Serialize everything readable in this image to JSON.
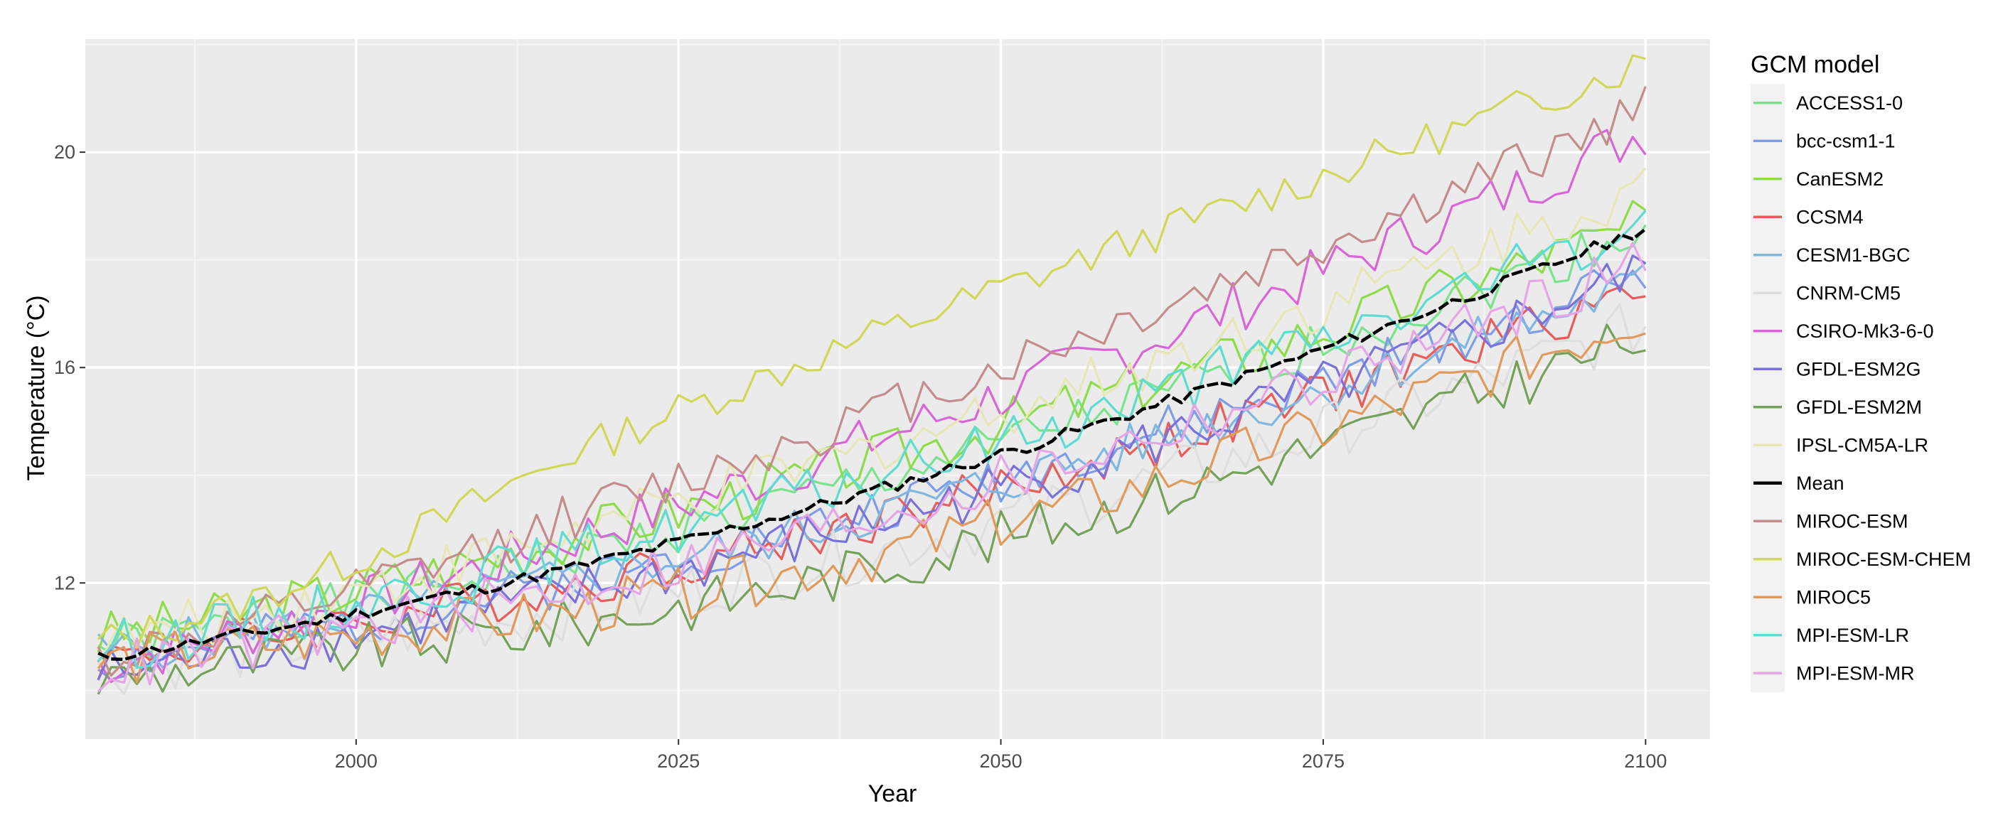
{
  "chart_data": {
    "type": "line",
    "title": "",
    "xlabel": "Year",
    "ylabel": "Temperature (°C)",
    "xlim": [
      1979,
      2105
    ],
    "ylim": [
      9.1,
      22.1
    ],
    "x_ticks": [
      2000,
      2025,
      2050,
      2075,
      2100
    ],
    "y_ticks": [
      12,
      16,
      20
    ],
    "x_tick_labels": [
      "2000",
      "2025",
      "2050",
      "2075",
      "2100"
    ],
    "y_tick_labels": [
      "12",
      "16",
      "20"
    ],
    "grid": true,
    "legend": {
      "title": "GCM model",
      "placement": "right",
      "entries": [
        "ACCESS1-0",
        "bcc-csm1-1",
        "CanESM2",
        "CCSM4",
        "CESM1-BGC",
        "CNRM-CM5",
        "CSIRO-Mk3-6-0",
        "GFDL-ESM2G",
        "GFDL-ESM2M",
        "IPSL-CM5A-LR",
        "Mean",
        "MIROC-ESM",
        "MIROC-ESM-CHEM",
        "MIROC5",
        "MPI-ESM-LR",
        "MPI-ESM-MR"
      ]
    },
    "series": [
      {
        "name": "ACCESS1-0",
        "color": "#7be38f",
        "start": 10.8,
        "end": 18.6,
        "offset": 0.1,
        "seed": 1,
        "noise": 0.45
      },
      {
        "name": "bcc-csm1-1",
        "color": "#7f9de6",
        "start": 10.5,
        "end": 17.8,
        "offset": 0.0,
        "seed": 2,
        "noise": 0.45
      },
      {
        "name": "CanESM2",
        "color": "#8fdc4a",
        "start": 11.0,
        "end": 18.7,
        "offset": 0.3,
        "seed": 3,
        "noise": 0.5
      },
      {
        "name": "CCSM4",
        "color": "#e85c5c",
        "start": 10.6,
        "end": 17.5,
        "offset": -0.1,
        "seed": 4,
        "noise": 0.45
      },
      {
        "name": "CESM1-BGC",
        "color": "#7fb7e0",
        "start": 10.7,
        "end": 17.6,
        "offset": -0.1,
        "seed": 5,
        "noise": 0.45
      },
      {
        "name": "CNRM-CM5",
        "color": "#dedede",
        "start": 10.4,
        "end": 16.8,
        "offset": -0.3,
        "seed": 6,
        "noise": 0.55
      },
      {
        "name": "CSIRO-Mk3-6-0",
        "color": "#d966d6",
        "start": 10.5,
        "end": 20.4,
        "offset": 0.3,
        "seed": 7,
        "noise": 0.5
      },
      {
        "name": "GFDL-ESM2G",
        "color": "#7b72d9",
        "start": 10.3,
        "end": 17.8,
        "offset": -0.1,
        "seed": 8,
        "noise": 0.5
      },
      {
        "name": "GFDL-ESM2M",
        "color": "#76a15a",
        "start": 10.2,
        "end": 16.6,
        "offset": -0.4,
        "seed": 9,
        "noise": 0.5
      },
      {
        "name": "IPSL-CM5A-LR",
        "color": "#e6e6b8",
        "start": 10.9,
        "end": 19.4,
        "offset": 0.3,
        "seed": 10,
        "noise": 0.5
      },
      {
        "name": "Mean",
        "color": "#000000",
        "start": 10.6,
        "end": 18.6,
        "offset": 0.0,
        "seed": 11,
        "noise": 0.12
      },
      {
        "name": "MIROC-ESM",
        "color": "#c48c8c",
        "start": 10.6,
        "end": 20.8,
        "offset": 0.6,
        "seed": 12,
        "noise": 0.45
      },
      {
        "name": "MIROC-ESM-CHEM",
        "color": "#cfd858",
        "start": 10.9,
        "end": 21.7,
        "offset": 1.5,
        "seed": 13,
        "noise": 0.35
      },
      {
        "name": "MIROC5",
        "color": "#e09a5c",
        "start": 10.5,
        "end": 17.0,
        "offset": -0.5,
        "seed": 14,
        "noise": 0.5
      },
      {
        "name": "MPI-ESM-LR",
        "color": "#5fdcd2",
        "start": 10.8,
        "end": 18.7,
        "offset": 0.1,
        "seed": 15,
        "noise": 0.5
      },
      {
        "name": "MPI-ESM-MR",
        "color": "#e6a6e6",
        "start": 10.4,
        "end": 18.0,
        "offset": -0.1,
        "seed": 16,
        "noise": 0.5
      }
    ],
    "x_start": 1980,
    "x_end": 2100,
    "colors": {
      "panel": "#ebebeb",
      "grid_major": "#ffffff",
      "grid_minor": "#f5f5f5",
      "legend_key": "#f2f2f2"
    }
  }
}
